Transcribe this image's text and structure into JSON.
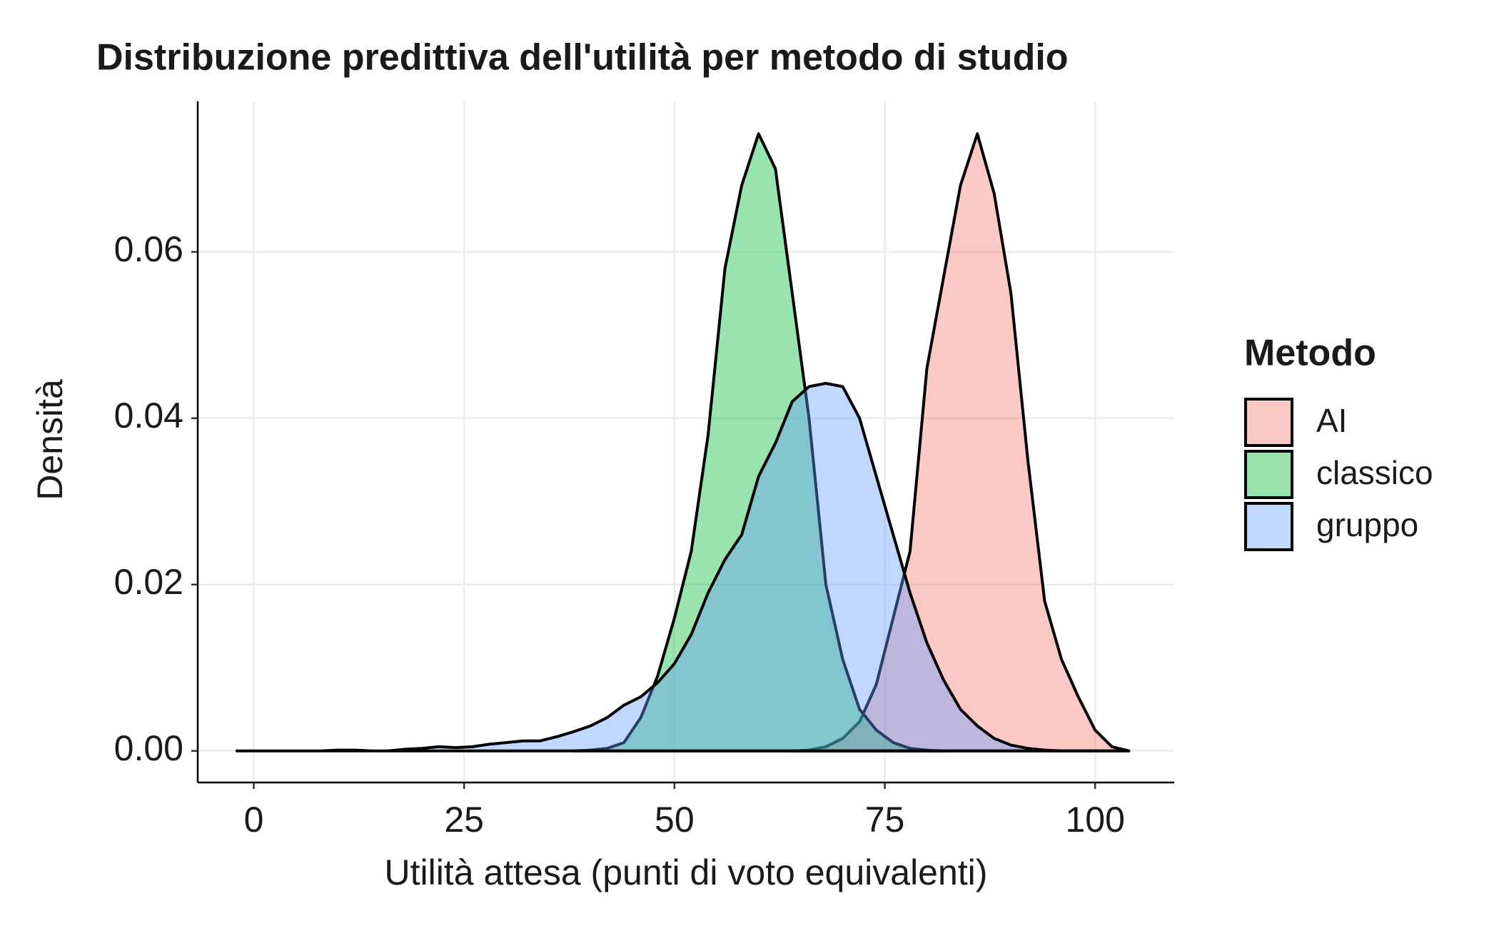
{
  "chart_data": {
    "type": "area",
    "title": "Distribuzione predittiva dell'utilità per metodo di studio",
    "x_label": "Utilità attesa (punti di voto equivalenti)",
    "y_label": "Densità",
    "legend_title": "Metodo",
    "x": [
      -2,
      0,
      2,
      4,
      6,
      8,
      10,
      12,
      14,
      16,
      18,
      20,
      22,
      24,
      26,
      28,
      30,
      32,
      34,
      36,
      38,
      40,
      42,
      44,
      46,
      48,
      50,
      52,
      54,
      56,
      58,
      60,
      62,
      64,
      66,
      68,
      70,
      72,
      74,
      76,
      78,
      80,
      82,
      84,
      86,
      88,
      90,
      92,
      94,
      96,
      98,
      100,
      102,
      104
    ],
    "series": [
      {
        "name": "AI",
        "color": "#F8766D",
        "values": [
          null,
          null,
          null,
          null,
          null,
          null,
          null,
          null,
          null,
          null,
          null,
          null,
          null,
          null,
          null,
          null,
          null,
          null,
          null,
          null,
          null,
          null,
          null,
          null,
          null,
          null,
          null,
          null,
          null,
          null,
          null,
          null,
          null,
          0,
          0.0001,
          0.0005,
          0.0015,
          0.0035,
          0.008,
          0.016,
          0.024,
          0.046,
          0.057,
          0.068,
          0.0742,
          0.067,
          0.055,
          0.035,
          0.018,
          0.011,
          0.0065,
          0.0025,
          0.0005,
          0
        ]
      },
      {
        "name": "classico",
        "color": "#00BA38",
        "values": [
          null,
          null,
          null,
          null,
          null,
          null,
          null,
          null,
          null,
          null,
          null,
          null,
          null,
          null,
          null,
          null,
          null,
          null,
          null,
          null,
          0,
          0.0001,
          0.0003,
          0.001,
          0.004,
          0.009,
          0.016,
          0.024,
          0.038,
          0.058,
          0.068,
          0.0742,
          0.07,
          0.055,
          0.04,
          0.02,
          0.011,
          0.005,
          0.0025,
          0.001,
          0.0003,
          0.0001,
          0,
          null,
          null,
          null,
          null,
          null,
          null,
          null,
          null,
          null,
          null,
          null
        ]
      },
      {
        "name": "gruppo",
        "color": "#619CFF",
        "values": [
          0,
          0,
          0,
          0,
          0,
          0,
          0.0001,
          0.0001,
          0,
          0,
          0.0002,
          0.0003,
          0.0005,
          0.0004,
          0.0005,
          0.0008,
          0.001,
          0.0012,
          0.0012,
          0.0017,
          0.0023,
          0.003,
          0.004,
          0.0055,
          0.0065,
          0.0082,
          0.0105,
          0.014,
          0.019,
          0.023,
          0.026,
          0.033,
          0.037,
          0.042,
          0.0438,
          0.0442,
          0.0438,
          0.04,
          0.033,
          0.026,
          0.019,
          0.013,
          0.0085,
          0.005,
          0.003,
          0.0015,
          0.0007,
          0.0003,
          0.0001,
          0,
          0,
          0,
          0,
          0
        ]
      }
    ],
    "fill_opacity": 0.4,
    "xlim": [
      -6.66,
      109.4
    ],
    "ylim": [
      -0.0038,
      0.0781
    ],
    "xticks": [
      0,
      25,
      50,
      75,
      100
    ],
    "yticks": [
      {
        "value": 0,
        "label": "0.00"
      },
      0.02,
      0.04,
      0.06
    ],
    "grid": true
  }
}
